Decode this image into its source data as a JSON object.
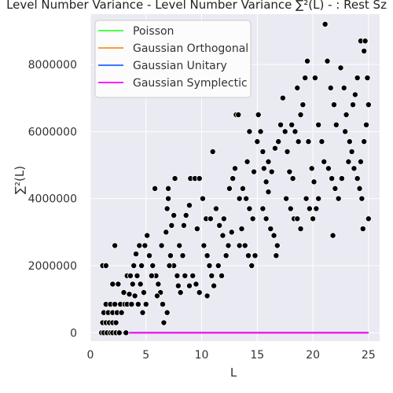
{
  "chart_data": {
    "type": "scatter",
    "title": "Level Number Variance - Level Number Variance ∑²(L) - : Rest Sz",
    "xlabel": "L",
    "ylabel": "∑²(L)",
    "xlim": [
      0,
      26
    ],
    "ylim": [
      -250000,
      9500000
    ],
    "xticks": [
      0,
      5,
      10,
      15,
      20,
      25
    ],
    "yticks": [
      0,
      2000000,
      4000000,
      6000000,
      8000000
    ],
    "ytick_labels": [
      "0",
      "2000000",
      "4000000",
      "6000000",
      "8000000"
    ],
    "grid": true,
    "background": "#eaeaf2",
    "legend_position": "top-left",
    "series": [
      {
        "name": "Poisson",
        "kind": "line",
        "color": "#33ff33",
        "x": [
          1,
          25
        ],
        "y": [
          0,
          0
        ]
      },
      {
        "name": "Gaussian Orthogonal",
        "kind": "line",
        "color": "#ff8c1a",
        "x": [
          1,
          25
        ],
        "y": [
          0,
          0
        ]
      },
      {
        "name": "Gaussian Unitary",
        "kind": "line",
        "color": "#1a66ff",
        "x": [
          1,
          25
        ],
        "y": [
          0,
          0
        ]
      },
      {
        "name": "Gaussian Symplectic",
        "kind": "line",
        "color": "#ff00ff",
        "x": [
          1,
          25
        ],
        "y": [
          0,
          0
        ]
      },
      {
        "kind": "scatter",
        "color": "#000000",
        "points": [
          [
            1.0,
            0
          ],
          [
            1.2,
            0
          ],
          [
            1.5,
            0
          ],
          [
            1.8,
            0
          ],
          [
            2.0,
            0
          ],
          [
            2.3,
            0
          ],
          [
            2.6,
            0
          ],
          [
            3.2,
            0
          ],
          [
            1.1,
            300000
          ],
          [
            1.4,
            300000
          ],
          [
            1.7,
            300000
          ],
          [
            2.0,
            300000
          ],
          [
            2.3,
            300000
          ],
          [
            1.2,
            600000
          ],
          [
            1.6,
            600000
          ],
          [
            2.0,
            600000
          ],
          [
            2.4,
            600000
          ],
          [
            2.8,
            600000
          ],
          [
            1.4,
            850000
          ],
          [
            1.8,
            850000
          ],
          [
            2.2,
            850000
          ],
          [
            2.7,
            850000
          ],
          [
            3.1,
            850000
          ],
          [
            1.1,
            2000000
          ],
          [
            1.4,
            2000000
          ],
          [
            2.2,
            2600000
          ],
          [
            2.0,
            1450000
          ],
          [
            2.5,
            1450000
          ],
          [
            3.0,
            1200000
          ],
          [
            3.3,
            1700000
          ],
          [
            3.6,
            1700000
          ],
          [
            3.9,
            2000000
          ],
          [
            4.1,
            2350000
          ],
          [
            3.5,
            1150000
          ],
          [
            3.8,
            1450000
          ],
          [
            4.2,
            1700000
          ],
          [
            4.5,
            1450000
          ],
          [
            4.8,
            1200000
          ],
          [
            3.3,
            850000
          ],
          [
            3.7,
            850000
          ],
          [
            4.3,
            850000
          ],
          [
            4.7,
            600000
          ],
          [
            5.0,
            850000
          ],
          [
            4.4,
            2600000
          ],
          [
            4.9,
            2600000
          ],
          [
            5.1,
            2900000
          ],
          [
            4.6,
            2000000
          ],
          [
            5.3,
            2300000
          ],
          [
            5.6,
            2000000
          ],
          [
            5.9,
            1700000
          ],
          [
            6.1,
            1450000
          ],
          [
            6.3,
            1200000
          ],
          [
            6.5,
            850000
          ],
          [
            6.6,
            300000
          ],
          [
            6.9,
            600000
          ],
          [
            5.8,
            4300000
          ],
          [
            6.4,
            2600000
          ],
          [
            6.8,
            3000000
          ],
          [
            6.9,
            3700000
          ],
          [
            7.0,
            4000000
          ],
          [
            7.0,
            4300000
          ],
          [
            7.3,
            3200000
          ],
          [
            7.5,
            3500000
          ],
          [
            7.2,
            2300000
          ],
          [
            7.5,
            2000000
          ],
          [
            7.8,
            1700000
          ],
          [
            7.9,
            1400000
          ],
          [
            8.1,
            1200000
          ],
          [
            7.6,
            4600000
          ],
          [
            8.0,
            2600000
          ],
          [
            8.4,
            3200000
          ],
          [
            8.6,
            3500000
          ],
          [
            8.9,
            3800000
          ],
          [
            8.5,
            1700000
          ],
          [
            8.9,
            1400000
          ],
          [
            9.2,
            1700000
          ],
          [
            9.5,
            1450000
          ],
          [
            9.8,
            1200000
          ],
          [
            9.0,
            4600000
          ],
          [
            9.4,
            4600000
          ],
          [
            9.8,
            4600000
          ],
          [
            10.1,
            4000000
          ],
          [
            10.4,
            3400000
          ],
          [
            10.2,
            2600000
          ],
          [
            10.5,
            2300000
          ],
          [
            10.7,
            2000000
          ],
          [
            10.9,
            1700000
          ],
          [
            11.1,
            1400000
          ],
          [
            10.5,
            1100000
          ],
          [
            11.0,
            5400000
          ],
          [
            11.3,
            3700000
          ],
          [
            11.6,
            3200000
          ],
          [
            11.9,
            2900000
          ],
          [
            11.5,
            2000000
          ],
          [
            11.8,
            1700000
          ],
          [
            12.2,
            2300000
          ],
          [
            12.4,
            2600000
          ],
          [
            12.7,
            3000000
          ],
          [
            12.5,
            4300000
          ],
          [
            12.8,
            4600000
          ],
          [
            13.0,
            4900000
          ],
          [
            13.1,
            6500000
          ],
          [
            13.3,
            6500000
          ],
          [
            13.4,
            4000000
          ],
          [
            13.7,
            4300000
          ],
          [
            14.0,
            4000000
          ],
          [
            14.3,
            3700000
          ],
          [
            14.6,
            3400000
          ],
          [
            13.4,
            2600000
          ],
          [
            13.9,
            2600000
          ],
          [
            14.2,
            2300000
          ],
          [
            14.5,
            2000000
          ],
          [
            14.8,
            2300000
          ],
          [
            14.1,
            5100000
          ],
          [
            14.3,
            6000000
          ],
          [
            14.7,
            4800000
          ],
          [
            15.0,
            5700000
          ],
          [
            15.1,
            6500000
          ],
          [
            15.3,
            6000000
          ],
          [
            15.5,
            5400000
          ],
          [
            15.6,
            4900000
          ],
          [
            15.8,
            4500000
          ],
          [
            16.0,
            4200000
          ],
          [
            15.5,
            3700000
          ],
          [
            15.8,
            3400000
          ],
          [
            16.2,
            3100000
          ],
          [
            16.5,
            2900000
          ],
          [
            16.8,
            2600000
          ],
          [
            16.0,
            5100000
          ],
          [
            16.3,
            4800000
          ],
          [
            16.6,
            5500000
          ],
          [
            16.9,
            5700000
          ],
          [
            17.1,
            6200000
          ],
          [
            17.3,
            7000000
          ],
          [
            17.5,
            6000000
          ],
          [
            17.7,
            5400000
          ],
          [
            17.9,
            4800000
          ],
          [
            18.2,
            4600000
          ],
          [
            17.6,
            4000000
          ],
          [
            18.0,
            3700000
          ],
          [
            18.3,
            3400000
          ],
          [
            18.6,
            3400000
          ],
          [
            18.9,
            3100000
          ],
          [
            18.1,
            6200000
          ],
          [
            18.4,
            6000000
          ],
          [
            18.7,
            5700000
          ],
          [
            18.9,
            6500000
          ],
          [
            19.1,
            6800000
          ],
          [
            18.6,
            7300000
          ],
          [
            19.3,
            7600000
          ],
          [
            19.6,
            5700000
          ],
          [
            19.9,
            4900000
          ],
          [
            20.1,
            4500000
          ],
          [
            19.4,
            4000000
          ],
          [
            19.7,
            3700000
          ],
          [
            20.0,
            3400000
          ],
          [
            20.3,
            3700000
          ],
          [
            20.5,
            4000000
          ],
          [
            19.5,
            8100000
          ],
          [
            20.2,
            7600000
          ],
          [
            20.5,
            6200000
          ],
          [
            20.8,
            5700000
          ],
          [
            21.0,
            5100000
          ],
          [
            21.1,
            9200000
          ],
          [
            21.3,
            8100000
          ],
          [
            21.6,
            7300000
          ],
          [
            21.9,
            6800000
          ],
          [
            22.1,
            6200000
          ],
          [
            21.4,
            4900000
          ],
          [
            21.7,
            4600000
          ],
          [
            22.0,
            4300000
          ],
          [
            22.3,
            4000000
          ],
          [
            22.6,
            4600000
          ],
          [
            21.8,
            2900000
          ],
          [
            22.5,
            7900000
          ],
          [
            22.8,
            7300000
          ],
          [
            23.0,
            6500000
          ],
          [
            23.3,
            5700000
          ],
          [
            23.5,
            5400000
          ],
          [
            23.7,
            4900000
          ],
          [
            24.0,
            4600000
          ],
          [
            24.2,
            4300000
          ],
          [
            24.4,
            4000000
          ],
          [
            23.6,
            6800000
          ],
          [
            23.8,
            7100000
          ],
          [
            24.0,
            7600000
          ],
          [
            24.3,
            8700000
          ],
          [
            24.6,
            8400000
          ],
          [
            24.7,
            8700000
          ],
          [
            24.9,
            7600000
          ],
          [
            25.0,
            6800000
          ],
          [
            24.8,
            6200000
          ],
          [
            24.6,
            5700000
          ],
          [
            24.3,
            5100000
          ],
          [
            24.5,
            3100000
          ],
          [
            25.0,
            3400000
          ],
          [
            23.2,
            5100000
          ],
          [
            22.9,
            6000000
          ],
          [
            16.7,
            2300000
          ],
          [
            13.6,
            3100000
          ],
          [
            12.0,
            3400000
          ],
          [
            10.8,
            3400000
          ],
          [
            9.6,
            3100000
          ],
          [
            8.3,
            2300000
          ],
          [
            7.1,
            2000000
          ],
          [
            6.0,
            1100000
          ],
          [
            5.5,
            1700000
          ],
          [
            4.0,
            1100000
          ]
        ]
      }
    ]
  }
}
